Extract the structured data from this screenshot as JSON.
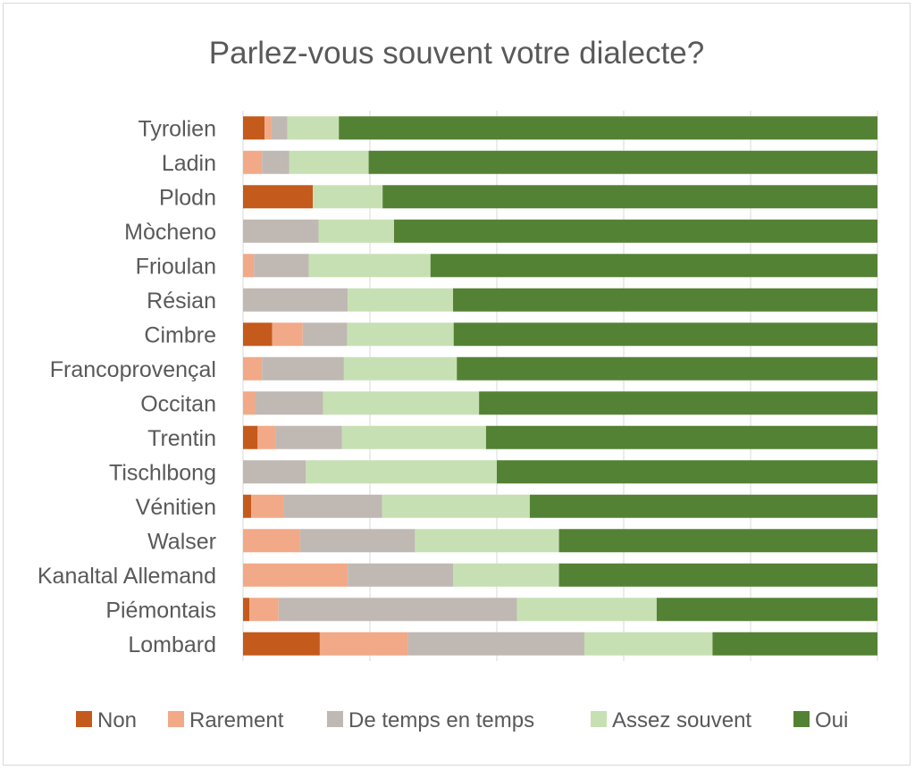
{
  "chart_data": {
    "type": "bar",
    "orientation": "horizontal",
    "stacked": "percent",
    "title": "Parlez-vous souvent votre dialecte?",
    "xlim": [
      0,
      100
    ],
    "grid": true,
    "legend_position": "bottom",
    "categories": [
      "Tyrolien",
      "Ladin",
      "Plodn",
      "Mòcheno",
      "Frioulan",
      "Résian",
      "Cimbre",
      "Francoprovençal",
      "Occitan",
      "Trentin",
      "Tischlbong",
      "Vénitien",
      "Walser",
      "Kanaltal Allemand",
      "Piémontais",
      "Lombard"
    ],
    "series": [
      {
        "name": "Non",
        "color": "#c55a1d",
        "values": [
          3.4,
          0,
          11,
          0,
          0,
          0,
          4.6,
          0,
          0,
          2.3,
          0,
          1.3,
          0,
          0,
          1,
          12.1
        ]
      },
      {
        "name": "Rarement",
        "color": "#f2a987",
        "values": [
          1.1,
          3.0,
          0,
          0,
          1.9,
          0,
          4.8,
          3.0,
          1.9,
          2.9,
          0,
          5.1,
          9.0,
          16.5,
          4.6,
          13.9
        ]
      },
      {
        "name": "De temps en temps",
        "color": "#c0b8b3",
        "values": [
          2.5,
          4.3,
          0,
          11.9,
          9.5,
          16.5,
          7.0,
          12.9,
          10.7,
          10.4,
          9.9,
          15.5,
          18.1,
          16.6,
          37.6,
          27.8
        ]
      },
      {
        "name": "Assez souvent",
        "color": "#c6e0b4",
        "values": [
          8.1,
          12.5,
          11,
          11.9,
          21.1,
          16.6,
          16.8,
          17.8,
          24.6,
          22.7,
          30.1,
          23.3,
          22.7,
          16.7,
          22.0,
          20.2
        ]
      },
      {
        "name": "Oui",
        "color": "#548235",
        "values": [
          84.9,
          80.2,
          78,
          76.2,
          77.5,
          66.9,
          66.8,
          66.3,
          62.8,
          61.7,
          60.0,
          54.8,
          50.2,
          50.2,
          34.8,
          26.0
        ]
      }
    ]
  }
}
